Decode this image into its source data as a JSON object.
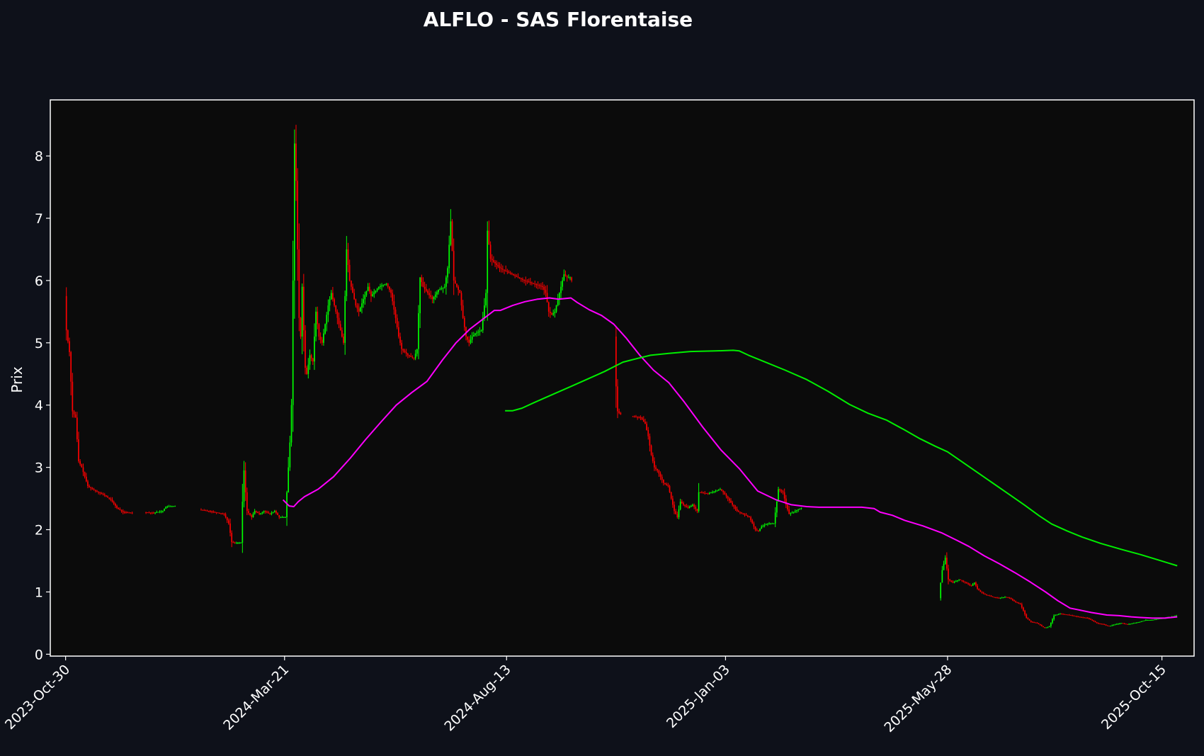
{
  "chart_data": {
    "type": "candlestick",
    "title": "ALFLO - SAS Florentaise",
    "xlabel": "",
    "ylabel": "Prix",
    "x_range_days": [
      -10,
      737
    ],
    "ylim": [
      -0.03,
      8.9
    ],
    "y_ticks": [
      0,
      1,
      2,
      3,
      4,
      5,
      6,
      7,
      8
    ],
    "x_ticks": [
      {
        "label": "2023-Oct-30",
        "day": 0
      },
      {
        "label": "2024-Mar-21",
        "day": 143
      },
      {
        "label": "2024-Aug-13",
        "day": 288
      },
      {
        "label": "2025-Jan-03",
        "day": 431
      },
      {
        "label": "2025-May-28",
        "day": 576
      },
      {
        "label": "2025-Oct-15",
        "day": 716
      }
    ],
    "grid": false,
    "legend": "none",
    "colors": {
      "page_bg": "#0e111a",
      "plot_bg": "#0b0b0b",
      "axis": "#ffffff",
      "up": "#00ff00",
      "down": "#ff0000",
      "ma_short": "#ff00ff",
      "ma_long": "#00ee00"
    },
    "price_path": [
      [
        0,
        5.75
      ],
      [
        1,
        5.2
      ],
      [
        3,
        4.85
      ],
      [
        5,
        3.9
      ],
      [
        7,
        3.8
      ],
      [
        9,
        3.1
      ],
      [
        11,
        3.0
      ],
      [
        13,
        2.85
      ],
      [
        15,
        2.7
      ],
      [
        18,
        2.65
      ],
      [
        22,
        2.6
      ],
      [
        26,
        2.55
      ],
      [
        30,
        2.48
      ],
      [
        34,
        2.35
      ],
      [
        38,
        2.28
      ],
      [
        44,
        2.27
      ],
      [
        52,
        2.28
      ],
      [
        58,
        2.27
      ],
      [
        64,
        2.3
      ],
      [
        66,
        2.37
      ],
      [
        72,
        2.38
      ],
      [
        80,
        2.36
      ],
      [
        88,
        2.32
      ],
      [
        94,
        2.3
      ],
      [
        100,
        2.27
      ],
      [
        104,
        2.25
      ],
      [
        107,
        2.1
      ],
      [
        108,
        1.95
      ],
      [
        109,
        1.8
      ],
      [
        111,
        1.79
      ],
      [
        115,
        1.79
      ],
      [
        116,
        2.45
      ],
      [
        117,
        2.95
      ],
      [
        118,
        2.6
      ],
      [
        119,
        2.3
      ],
      [
        122,
        2.2
      ],
      [
        124,
        2.3
      ],
      [
        127,
        2.25
      ],
      [
        130,
        2.3
      ],
      [
        134,
        2.25
      ],
      [
        137,
        2.3
      ],
      [
        140,
        2.2
      ],
      [
        144,
        2.2
      ],
      [
        147,
        3.4
      ],
      [
        148,
        4.0
      ],
      [
        149,
        6.0
      ],
      [
        150,
        8.2
      ],
      [
        151,
        7.6
      ],
      [
        152,
        6.5
      ],
      [
        153,
        5.4
      ],
      [
        154,
        5.1
      ],
      [
        155,
        5.9
      ],
      [
        156,
        5.2
      ],
      [
        157,
        4.6
      ],
      [
        158,
        4.5
      ],
      [
        160,
        4.8
      ],
      [
        162,
        4.7
      ],
      [
        164,
        5.5
      ],
      [
        166,
        5.1
      ],
      [
        168,
        5.0
      ],
      [
        170,
        5.3
      ],
      [
        172,
        5.6
      ],
      [
        174,
        5.8
      ],
      [
        176,
        5.6
      ],
      [
        178,
        5.4
      ],
      [
        180,
        5.2
      ],
      [
        182,
        5.0
      ],
      [
        184,
        6.5
      ],
      [
        186,
        6.0
      ],
      [
        188,
        5.8
      ],
      [
        190,
        5.6
      ],
      [
        192,
        5.5
      ],
      [
        195,
        5.7
      ],
      [
        198,
        5.9
      ],
      [
        200,
        5.75
      ],
      [
        205,
        5.9
      ],
      [
        210,
        5.95
      ],
      [
        213,
        5.8
      ],
      [
        216,
        5.4
      ],
      [
        218,
        5.1
      ],
      [
        220,
        4.9
      ],
      [
        224,
        4.8
      ],
      [
        228,
        4.75
      ],
      [
        230,
        4.9
      ],
      [
        232,
        6.05
      ],
      [
        234,
        5.9
      ],
      [
        237,
        5.8
      ],
      [
        240,
        5.7
      ],
      [
        244,
        5.85
      ],
      [
        248,
        5.9
      ],
      [
        250,
        6.2
      ],
      [
        252,
        6.95
      ],
      [
        254,
        6.0
      ],
      [
        256,
        5.9
      ],
      [
        258,
        5.8
      ],
      [
        260,
        5.4
      ],
      [
        262,
        5.1
      ],
      [
        264,
        5.0
      ],
      [
        266,
        5.1
      ],
      [
        268,
        5.15
      ],
      [
        272,
        5.2
      ],
      [
        274,
        5.6
      ],
      [
        275,
        5.8
      ],
      [
        276,
        6.8
      ],
      [
        278,
        6.35
      ],
      [
        280,
        6.3
      ],
      [
        284,
        6.2
      ],
      [
        288,
        6.15
      ],
      [
        292,
        6.1
      ],
      [
        296,
        6.05
      ],
      [
        300,
        6.0
      ],
      [
        306,
        5.95
      ],
      [
        312,
        5.9
      ],
      [
        314,
        5.8
      ],
      [
        316,
        5.5
      ],
      [
        318,
        5.45
      ],
      [
        320,
        5.5
      ],
      [
        322,
        5.7
      ],
      [
        324,
        5.9
      ],
      [
        326,
        6.1
      ],
      [
        328,
        6.05
      ],
      [
        330,
        6.05
      ],
      [
        331,
        6.0
      ],
      [
        359,
        5.1
      ],
      [
        360,
        4.3
      ],
      [
        361,
        3.9
      ],
      [
        363,
        3.85
      ],
      [
        370,
        3.82
      ],
      [
        376,
        3.8
      ],
      [
        379,
        3.7
      ],
      [
        381,
        3.5
      ],
      [
        383,
        3.2
      ],
      [
        385,
        3.0
      ],
      [
        387,
        2.95
      ],
      [
        389,
        2.85
      ],
      [
        391,
        2.75
      ],
      [
        394,
        2.7
      ],
      [
        396,
        2.5
      ],
      [
        398,
        2.3
      ],
      [
        400,
        2.2
      ],
      [
        402,
        2.45
      ],
      [
        404,
        2.4
      ],
      [
        407,
        2.35
      ],
      [
        410,
        2.4
      ],
      [
        413,
        2.3
      ],
      [
        414,
        2.6
      ],
      [
        420,
        2.58
      ],
      [
        425,
        2.62
      ],
      [
        428,
        2.65
      ],
      [
        430,
        2.6
      ],
      [
        433,
        2.5
      ],
      [
        436,
        2.4
      ],
      [
        439,
        2.3
      ],
      [
        443,
        2.25
      ],
      [
        447,
        2.2
      ],
      [
        449,
        2.1
      ],
      [
        451,
        2.0
      ],
      [
        453,
        1.98
      ],
      [
        455,
        2.05
      ],
      [
        459,
        2.1
      ],
      [
        463,
        2.1
      ],
      [
        465,
        2.45
      ],
      [
        466,
        2.65
      ],
      [
        469,
        2.6
      ],
      [
        471,
        2.4
      ],
      [
        473,
        2.25
      ],
      [
        477,
        2.3
      ],
      [
        481,
        2.35
      ],
      [
        490,
        2.36
      ],
      [
        500,
        2.36
      ],
      [
        510,
        2.36
      ],
      [
        520,
        2.36
      ],
      [
        530,
        2.36
      ],
      [
        540,
        2.36
      ],
      [
        571,
        0.9
      ],
      [
        572,
        1.15
      ],
      [
        573,
        1.35
      ],
      [
        575,
        1.55
      ],
      [
        577,
        1.2
      ],
      [
        580,
        1.15
      ],
      [
        584,
        1.2
      ],
      [
        588,
        1.15
      ],
      [
        592,
        1.1
      ],
      [
        594,
        1.15
      ],
      [
        596,
        1.05
      ],
      [
        598,
        1.0
      ],
      [
        602,
        0.95
      ],
      [
        606,
        0.92
      ],
      [
        610,
        0.9
      ],
      [
        614,
        0.92
      ],
      [
        617,
        0.9
      ],
      [
        620,
        0.85
      ],
      [
        624,
        0.8
      ],
      [
        626,
        0.7
      ],
      [
        628,
        0.58
      ],
      [
        631,
        0.52
      ],
      [
        635,
        0.5
      ],
      [
        638,
        0.45
      ],
      [
        640,
        0.42
      ],
      [
        643,
        0.45
      ],
      [
        646,
        0.62
      ],
      [
        650,
        0.65
      ],
      [
        656,
        0.63
      ],
      [
        662,
        0.6
      ],
      [
        668,
        0.58
      ],
      [
        674,
        0.5
      ],
      [
        678,
        0.48
      ],
      [
        682,
        0.45
      ],
      [
        686,
        0.48
      ],
      [
        690,
        0.5
      ],
      [
        694,
        0.48
      ],
      [
        698,
        0.5
      ],
      [
        702,
        0.52
      ],
      [
        706,
        0.55
      ],
      [
        710,
        0.55
      ],
      [
        714,
        0.57
      ],
      [
        718,
        0.58
      ],
      [
        722,
        0.6
      ],
      [
        726,
        0.62
      ]
    ],
    "series": [
      {
        "color": "#ff00ff",
        "points": [
          [
            142,
            2.48
          ],
          [
            146,
            2.38
          ],
          [
            149,
            2.37
          ],
          [
            152,
            2.45
          ],
          [
            156,
            2.53
          ],
          [
            165,
            2.65
          ],
          [
            175,
            2.85
          ],
          [
            186,
            3.15
          ],
          [
            196,
            3.45
          ],
          [
            206,
            3.73
          ],
          [
            216,
            4.0
          ],
          [
            226,
            4.2
          ],
          [
            236,
            4.38
          ],
          [
            246,
            4.72
          ],
          [
            255,
            5.0
          ],
          [
            264,
            5.22
          ],
          [
            272,
            5.37
          ],
          [
            280,
            5.52
          ],
          [
            284,
            5.52
          ],
          [
            292,
            5.6
          ],
          [
            300,
            5.66
          ],
          [
            308,
            5.7
          ],
          [
            316,
            5.72
          ],
          [
            322,
            5.7
          ],
          [
            330,
            5.72
          ],
          [
            334,
            5.65
          ],
          [
            342,
            5.53
          ],
          [
            350,
            5.44
          ],
          [
            358,
            5.3
          ],
          [
            366,
            5.08
          ],
          [
            375,
            4.8
          ],
          [
            384,
            4.56
          ],
          [
            394,
            4.36
          ],
          [
            404,
            4.05
          ],
          [
            416,
            3.65
          ],
          [
            428,
            3.28
          ],
          [
            440,
            2.98
          ],
          [
            452,
            2.62
          ],
          [
            464,
            2.48
          ],
          [
            474,
            2.4
          ],
          [
            484,
            2.37
          ],
          [
            492,
            2.36
          ],
          [
            502,
            2.36
          ],
          [
            512,
            2.36
          ],
          [
            520,
            2.36
          ],
          [
            528,
            2.34
          ],
          [
            532,
            2.28
          ],
          [
            540,
            2.23
          ],
          [
            548,
            2.15
          ],
          [
            560,
            2.06
          ],
          [
            572,
            1.95
          ],
          [
            582,
            1.83
          ],
          [
            590,
            1.73
          ],
          [
            600,
            1.58
          ],
          [
            610,
            1.45
          ],
          [
            620,
            1.31
          ],
          [
            630,
            1.16
          ],
          [
            640,
            1.0
          ],
          [
            648,
            0.86
          ],
          [
            652,
            0.8
          ],
          [
            656,
            0.74
          ],
          [
            664,
            0.7
          ],
          [
            670,
            0.67
          ],
          [
            680,
            0.63
          ],
          [
            688,
            0.62
          ],
          [
            696,
            0.6
          ],
          [
            702,
            0.59
          ],
          [
            710,
            0.58
          ],
          [
            718,
            0.58
          ],
          [
            726,
            0.6
          ]
        ]
      },
      {
        "color": "#00ee00",
        "points": [
          [
            287,
            3.91
          ],
          [
            292,
            3.91
          ],
          [
            298,
            3.95
          ],
          [
            306,
            4.04
          ],
          [
            318,
            4.17
          ],
          [
            330,
            4.3
          ],
          [
            342,
            4.43
          ],
          [
            352,
            4.54
          ],
          [
            360,
            4.64
          ],
          [
            364,
            4.69
          ],
          [
            372,
            4.74
          ],
          [
            382,
            4.8
          ],
          [
            394,
            4.83
          ],
          [
            408,
            4.86
          ],
          [
            424,
            4.87
          ],
          [
            436,
            4.88
          ],
          [
            440,
            4.87
          ],
          [
            446,
            4.8
          ],
          [
            456,
            4.7
          ],
          [
            470,
            4.56
          ],
          [
            484,
            4.41
          ],
          [
            498,
            4.22
          ],
          [
            512,
            4.01
          ],
          [
            524,
            3.87
          ],
          [
            536,
            3.76
          ],
          [
            548,
            3.6
          ],
          [
            558,
            3.46
          ],
          [
            568,
            3.34
          ],
          [
            576,
            3.25
          ],
          [
            586,
            3.08
          ],
          [
            596,
            2.91
          ],
          [
            606,
            2.74
          ],
          [
            616,
            2.57
          ],
          [
            626,
            2.4
          ],
          [
            636,
            2.22
          ],
          [
            644,
            2.09
          ],
          [
            654,
            1.98
          ],
          [
            664,
            1.88
          ],
          [
            676,
            1.78
          ],
          [
            690,
            1.68
          ],
          [
            702,
            1.6
          ],
          [
            714,
            1.51
          ],
          [
            726,
            1.42
          ]
        ]
      }
    ]
  }
}
